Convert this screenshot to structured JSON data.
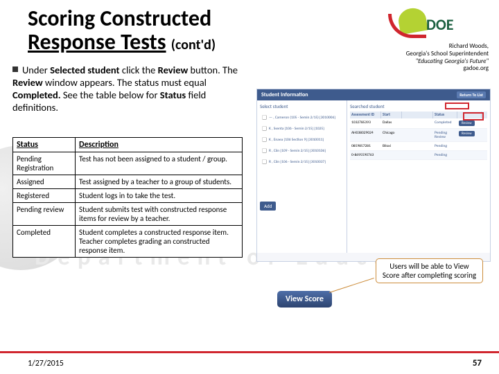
{
  "bg_text": "Department of Education",
  "title_line1": "Scoring Constructed",
  "title_line2a": "Response Tests",
  "title_suffix": "(cont'd)",
  "logo": {
    "doe": "DOE"
  },
  "tagline": {
    "l1": "Richard Woods,",
    "l2": "Georgia's School Superintendent",
    "l3": "\"Educating Georgia's Future\"",
    "l4": "gadoe.org"
  },
  "bullet": {
    "pre": "Under ",
    "b1": "Selected student ",
    "mid1": "click the ",
    "b2": "Review ",
    "mid2": "button. The ",
    "b3": "Review ",
    "mid3": "window appears. The status must equal ",
    "b4": "Completed. ",
    "mid4": "See the table below for ",
    "b5": "Status ",
    "mid5": "field definitions."
  },
  "table": {
    "h1": "Status",
    "h2": "Description",
    "rows": [
      {
        "s": "Pending Registration",
        "d": "Test has not been assigned to a student / group."
      },
      {
        "s": "Assigned",
        "d": "Test assigned by a teacher to a group of students."
      },
      {
        "s": "Registered",
        "d": "Student logs in to take the test."
      },
      {
        "s": "Pending review",
        "d": "Student submits test with constructed response items for review by a teacher."
      },
      {
        "s": "Completed",
        "d": "Student completes a constructed response item.\nTeacher completes grading an constructed response item."
      }
    ]
  },
  "ss": {
    "title": "Student Information",
    "back": "Return To List",
    "left_title": "Select student",
    "students": [
      "— , Cameron (105 - Semin 2/15) [3010006]",
      "K , Ssenta [106 - Semin 2/15] [1025]",
      "K , Enaea [106 Section 9] [3010011]",
      "R , Ciin [109 - Semin 2/15] [3010106]",
      "R , Ciin [106 - Semin 2/15] [3010037]"
    ],
    "add": "Add",
    "right_title": "Searched student",
    "cols": [
      "Assessment ID",
      "Start",
      "Status",
      ""
    ],
    "grid_rows": [
      {
        "id": "1032785393",
        "name": "Dallas",
        "status": "Completed",
        "btn": "Review"
      },
      {
        "id": "AH038029024",
        "name": "Chicago",
        "status": "Pending Review",
        "btn": "Review"
      },
      {
        "id": "0859857281",
        "name": "Biloxi",
        "status": "Pending",
        "btn": ""
      },
      {
        "id": "0-8695590763",
        "name": "",
        "status": "Pending",
        "btn": ""
      }
    ]
  },
  "view_score": "View Score",
  "callout": "Users will be able to View Score after completing scoring",
  "footer": {
    "date": "1/27/2015",
    "num": "57"
  },
  "colors": {
    "red": "#d0262e",
    "blue": "#3e5b8d",
    "green": "#1a5f3f",
    "lime": "#b4d233",
    "callout_border": "#cc8c3a"
  }
}
